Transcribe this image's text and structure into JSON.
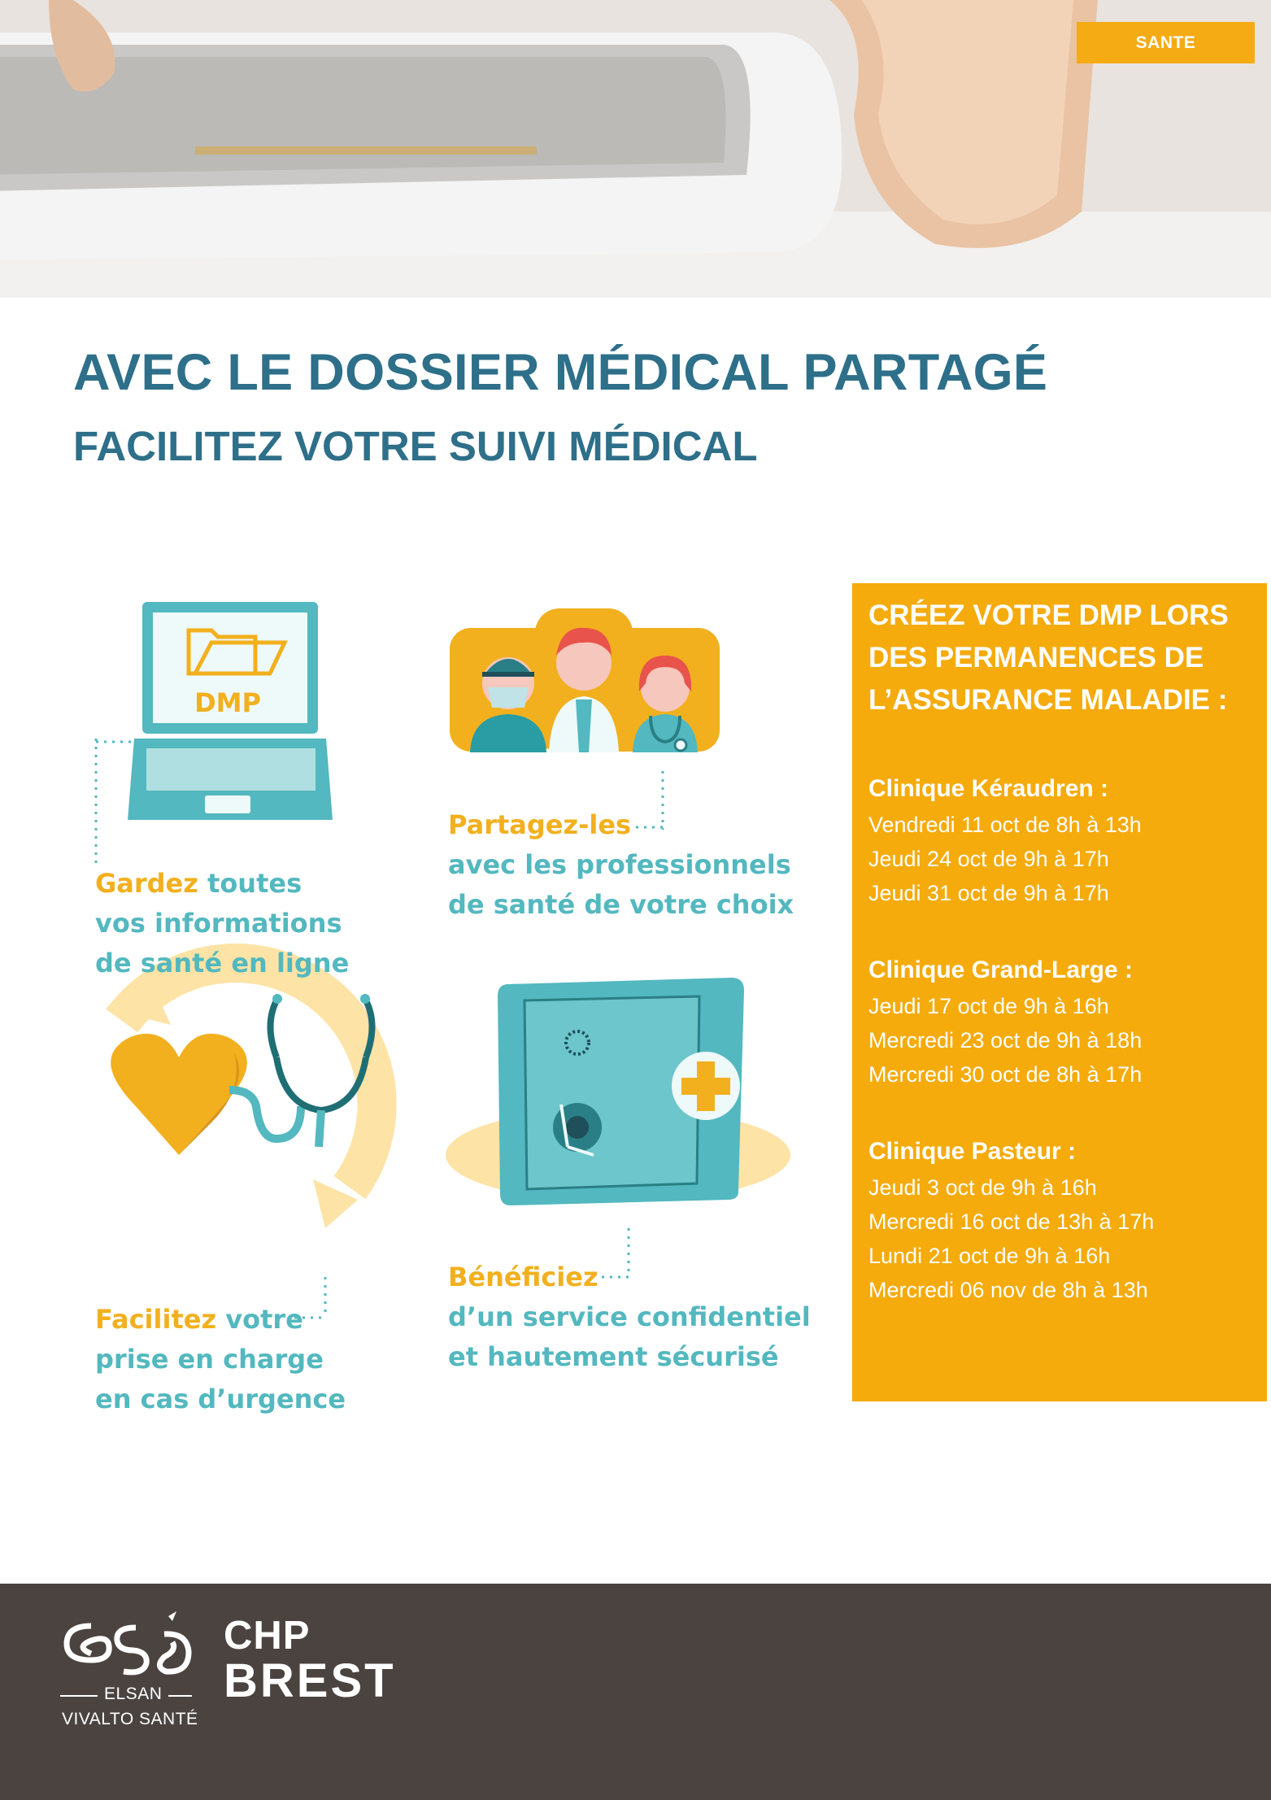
{
  "header": {
    "tag": "SANTE",
    "title": "AVEC LE DOSSIER MÉDICAL PARTAGÉ",
    "subtitle": "FACILITEZ VOTRE SUIVI MÉDICAL"
  },
  "infographic": {
    "laptop_screen_text": "DMP",
    "items": [
      {
        "highlight": "Gardez",
        "line1_rest": " toutes",
        "line2": "vos informations",
        "line3": "de santé en ligne"
      },
      {
        "highlight": "Partagez-les",
        "line2": "avec les professionnels",
        "line3": "de santé de votre choix"
      },
      {
        "highlight": "Facilitez",
        "line1_rest": " votre",
        "line2": "prise en charge",
        "line3": "en cas d’urgence"
      },
      {
        "highlight": "Bénéficiez",
        "line2": "d’un service confidentiel",
        "line3": "et hautement sécurisé"
      }
    ]
  },
  "sidebar": {
    "heading_lines": [
      "CRÉEZ VOTRE DMP LORS",
      "DES PERMANENCES DE",
      "L’ASSURANCE MALADIE :"
    ],
    "clinics": [
      {
        "name": "Clinique Kéraudren :",
        "slots": [
          "Vendredi 11 oct de 8h à 13h",
          "Jeudi 24 oct de 9h à 17h",
          "Jeudi 31 oct de 9h à 17h"
        ]
      },
      {
        "name": "Clinique Grand-Large :",
        "slots": [
          "Jeudi 17 oct de  9h à 16h",
          "Mercredi 23 oct de 9h à 18h",
          "Mercredi 30 oct de 8h à 17h"
        ]
      },
      {
        "name": "Clinique Pasteur :",
        "slots": [
          "Jeudi 3 oct de 9h à 16h",
          "Mercredi 16 oct de 13h à 17h",
          "Lundi 21 oct de 9h à 16h",
          "Mercredi 06 nov de 8h à 13h"
        ]
      }
    ]
  },
  "footer": {
    "logo1_line1": "ELSAN",
    "logo1_line2": "VIVALTO SANTÉ",
    "logo2_line1": "CHP",
    "logo2_line2": "BREST"
  },
  "colors": {
    "accent_yellow": "#f5ab0c",
    "title_blue": "#2e6f89",
    "teal": "#53b8bf",
    "footer_bg": "#4a4340"
  }
}
